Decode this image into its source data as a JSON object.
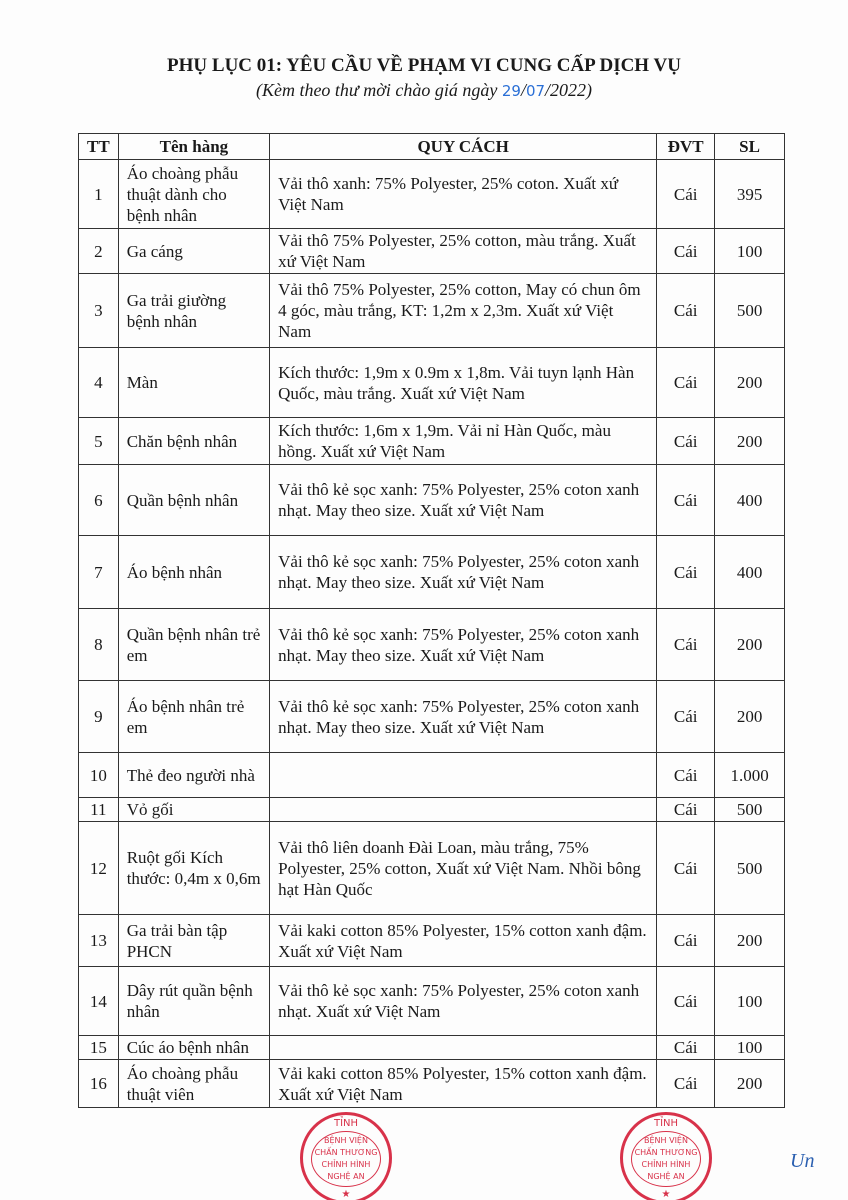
{
  "header": {
    "title": "PHỤ LỤC 01: YÊU CẦU VỀ PHẠM VI CUNG CẤP DỊCH VỤ",
    "subtitle_prefix": "(Kèm theo thư mời chào giá ngày ",
    "day": "29",
    "sep1": "/",
    "month": "07",
    "year_suffix": "/2022)"
  },
  "stamp": {
    "top": "TỈNH",
    "line1": "BỆNH VIỆN",
    "line2": "CHẤN THƯƠNG",
    "line3": "CHỈNH HÌNH",
    "line4": "NGHỆ AN",
    "star": "★"
  },
  "table": {
    "columns": [
      "TT",
      "Tên hàng",
      "QUY CÁCH",
      "ĐVT",
      "SL"
    ],
    "rows": [
      {
        "tt": "1",
        "name": "Áo choàng phẫu thuật dành cho bệnh nhân",
        "spec": "Vải thô xanh: 75% Polyester, 25% coton. Xuất xứ Việt Nam",
        "unit": "Cái",
        "qty": "395"
      },
      {
        "tt": "2",
        "name": "Ga cáng",
        "spec": "Vải thô 75% Polyester, 25% cotton, màu trắng. Xuất xứ Việt Nam",
        "unit": "Cái",
        "qty": "100"
      },
      {
        "tt": "3",
        "name": "Ga trải giường bệnh nhân",
        "spec": "Vải thô 75% Polyester, 25% cotton, May có chun ôm 4 góc, màu trắng, KT: 1,2m x 2,3m. Xuất xứ Việt Nam",
        "unit": "Cái",
        "qty": "500"
      },
      {
        "tt": "4",
        "name": "Màn",
        "spec": "Kích thước: 1,9m x 0.9m x 1,8m. Vải tuyn lạnh Hàn Quốc, màu trắng. Xuất xứ Việt Nam",
        "unit": "Cái",
        "qty": "200"
      },
      {
        "tt": "5",
        "name": "Chăn bệnh nhân",
        "spec": "Kích thước: 1,6m x 1,9m. Vải nỉ Hàn Quốc, màu hồng. Xuất xứ Việt Nam",
        "unit": "Cái",
        "qty": "200"
      },
      {
        "tt": "6",
        "name": "Quần bệnh nhân",
        "spec": "Vải thô kẻ sọc xanh: 75% Polyester, 25% coton xanh nhạt. May theo size. Xuất xứ Việt Nam",
        "unit": "Cái",
        "qty": "400"
      },
      {
        "tt": "7",
        "name": "Áo bệnh nhân",
        "spec": "Vải thô kẻ sọc xanh: 75% Polyester, 25% coton xanh nhạt. May theo size. Xuất xứ Việt Nam",
        "unit": "Cái",
        "qty": "400"
      },
      {
        "tt": "8",
        "name": "Quần bệnh nhân trẻ em",
        "spec": "Vải thô kẻ sọc xanh: 75% Polyester, 25% coton xanh nhạt. May theo size. Xuất xứ Việt Nam",
        "unit": "Cái",
        "qty": "200"
      },
      {
        "tt": "9",
        "name": "Áo bệnh nhân trẻ em",
        "spec": "Vải thô kẻ sọc xanh: 75% Polyester, 25% coton xanh nhạt. May theo size. Xuất xứ Việt Nam",
        "unit": "Cái",
        "qty": "200"
      },
      {
        "tt": "10",
        "name": "Thẻ đeo người nhà",
        "spec": "",
        "unit": "Cái",
        "qty": "1.000"
      },
      {
        "tt": "11",
        "name": "Vỏ gối",
        "spec": "",
        "unit": "Cái",
        "qty": "500"
      },
      {
        "tt": "12",
        "name": "Ruột gối Kích thước: 0,4m x 0,6m",
        "spec": "Vải thô liên doanh Đài Loan, màu trắng, 75% Polyester, 25% cotton, Xuất xứ Việt Nam. Nhồi bông hạt Hàn Quốc",
        "unit": "Cái",
        "qty": "500"
      },
      {
        "tt": "13",
        "name": "Ga trải bàn tập PHCN",
        "spec": "Vải kaki cotton 85% Polyester, 15%  cotton xanh đậm. Xuất xứ Việt Nam",
        "unit": "Cái",
        "qty": "200"
      },
      {
        "tt": "14",
        "name": "Dây rút quần bệnh nhân",
        "spec": "Vải thô kẻ sọc xanh: 75% Polyester, 25% coton xanh nhạt. Xuất xứ Việt Nam",
        "unit": "Cái",
        "qty": "100"
      },
      {
        "tt": "15",
        "name": "Cúc áo bệnh nhân",
        "spec": "",
        "unit": "Cái",
        "qty": "100"
      },
      {
        "tt": "16",
        "name": "Áo choàng  phẫu thuật viên",
        "spec": "Vải kaki cotton 85% Polyester, 15%  cotton xanh đậm. Xuất xứ Việt Nam",
        "unit": "Cái",
        "qty": "200"
      }
    ]
  },
  "signature": "Un"
}
